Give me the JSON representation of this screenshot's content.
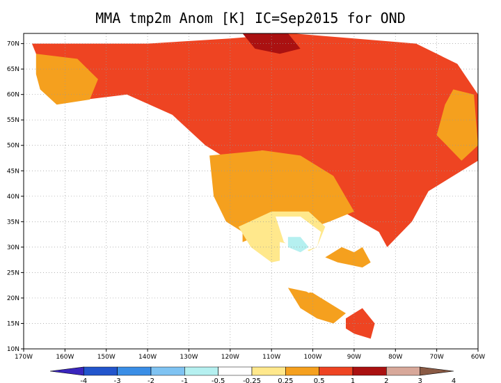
{
  "title": "MMA tmp2m Anom [K]  IC=Sep2015 for OND",
  "map": {
    "projection": "cylindrical",
    "lon_range": [
      -170,
      -60
    ],
    "lat_range": [
      10,
      72
    ],
    "lon_ticks": [
      {
        "value": -170,
        "label": "170W"
      },
      {
        "value": -160,
        "label": "160W"
      },
      {
        "value": -150,
        "label": "150W"
      },
      {
        "value": -140,
        "label": "140W"
      },
      {
        "value": -130,
        "label": "130W"
      },
      {
        "value": -120,
        "label": "120W"
      },
      {
        "value": -110,
        "label": "110W"
      },
      {
        "value": -100,
        "label": "100W"
      },
      {
        "value": -90,
        "label": "90W"
      },
      {
        "value": -80,
        "label": "80W"
      },
      {
        "value": -70,
        "label": "70W"
      },
      {
        "value": -60,
        "label": "60W"
      }
    ],
    "lat_ticks": [
      {
        "value": 10,
        "label": "10N"
      },
      {
        "value": 15,
        "label": "15N"
      },
      {
        "value": 20,
        "label": "20N"
      },
      {
        "value": 25,
        "label": "25N"
      },
      {
        "value": 30,
        "label": "30N"
      },
      {
        "value": 35,
        "label": "35N"
      },
      {
        "value": 40,
        "label": "40N"
      },
      {
        "value": 45,
        "label": "45N"
      },
      {
        "value": 50,
        "label": "50N"
      },
      {
        "value": 55,
        "label": "55N"
      },
      {
        "value": 60,
        "label": "60N"
      },
      {
        "value": 65,
        "label": "65N"
      },
      {
        "value": 70,
        "label": "70N"
      }
    ],
    "grid": "dotted",
    "regions": [
      {
        "name": "canada-north",
        "level": "1-2",
        "color": "#ee4422",
        "polygon": [
          [
            -168,
            70
          ],
          [
            -140,
            70
          ],
          [
            -120,
            71
          ],
          [
            -105,
            72
          ],
          [
            -90,
            71
          ],
          [
            -75,
            70
          ],
          [
            -65,
            66
          ],
          [
            -60,
            60
          ],
          [
            -60,
            47
          ],
          [
            -66,
            44
          ],
          [
            -72,
            41
          ],
          [
            -76,
            35
          ],
          [
            -82,
            30
          ],
          [
            -84,
            33
          ],
          [
            -95,
            38
          ],
          [
            -105,
            43
          ],
          [
            -112,
            49
          ],
          [
            -122,
            48
          ],
          [
            -126,
            50
          ],
          [
            -134,
            56
          ],
          [
            -145,
            60
          ],
          [
            -155,
            59
          ],
          [
            -160,
            63
          ],
          [
            -166,
            66
          ]
        ]
      },
      {
        "name": "alaska-west",
        "level": "0.5-1",
        "color": "#f5a01e",
        "polygon": [
          [
            -167,
            68
          ],
          [
            -157,
            67
          ],
          [
            -152,
            63
          ],
          [
            -154,
            59
          ],
          [
            -162,
            58
          ],
          [
            -166,
            61
          ],
          [
            -167,
            64
          ]
        ]
      },
      {
        "name": "labrador",
        "level": "0.5-1",
        "color": "#f5a01e",
        "polygon": [
          [
            -66,
            61
          ],
          [
            -61,
            60
          ],
          [
            -60,
            50
          ],
          [
            -64,
            47
          ],
          [
            -70,
            52
          ],
          [
            -68,
            58
          ]
        ]
      },
      {
        "name": "western-us",
        "level": "0.5-1",
        "color": "#f5a01e",
        "polygon": [
          [
            -125,
            48
          ],
          [
            -112,
            49
          ],
          [
            -103,
            48
          ],
          [
            -95,
            44
          ],
          [
            -90,
            37
          ],
          [
            -96,
            35
          ],
          [
            -103,
            33
          ],
          [
            -111,
            33
          ],
          [
            -117,
            31
          ],
          [
            -117,
            33
          ],
          [
            -121,
            35
          ],
          [
            -124,
            40
          ]
        ]
      },
      {
        "name": "gulf-coast",
        "level": "0.5-1",
        "color": "#f5a01e",
        "polygon": [
          [
            -97,
            28
          ],
          [
            -93,
            30
          ],
          [
            -90,
            29
          ],
          [
            -88,
            30
          ],
          [
            -86,
            27
          ],
          [
            -88,
            26
          ],
          [
            -94,
            27
          ]
        ]
      },
      {
        "name": "mexico-south",
        "level": "0.5-1",
        "color": "#f5a01e",
        "polygon": [
          [
            -106,
            22
          ],
          [
            -100,
            21
          ],
          [
            -96,
            19
          ],
          [
            -92,
            17
          ],
          [
            -95,
            15
          ],
          [
            -99,
            16
          ],
          [
            -103,
            18
          ]
        ]
      },
      {
        "name": "southwest",
        "level": "0.25-0.5",
        "color": "#ffe88c",
        "polygon": [
          [
            -118,
            34
          ],
          [
            -110,
            37
          ],
          [
            -101,
            37
          ],
          [
            -97,
            34
          ],
          [
            -99,
            30
          ],
          [
            -104,
            28
          ],
          [
            -110,
            27
          ],
          [
            -115,
            30
          ]
        ]
      },
      {
        "name": "texas",
        "level": "-0.25-0.25",
        "color": "#ffffff",
        "polygon": [
          [
            -109,
            36
          ],
          [
            -103,
            36
          ],
          [
            -98,
            33
          ],
          [
            -99,
            30
          ],
          [
            -103,
            29
          ],
          [
            -107,
            31
          ]
        ]
      },
      {
        "name": "mexico-north",
        "level": "-0.25-0.25",
        "color": "#ffffff",
        "polygon": [
          [
            -108,
            31
          ],
          [
            -102,
            30
          ],
          [
            -98,
            27
          ],
          [
            -97,
            22
          ],
          [
            -101,
            21
          ],
          [
            -105,
            23
          ],
          [
            -108,
            27
          ]
        ]
      },
      {
        "name": "cool-anom",
        "level": "-0.5--0.25",
        "color": "#b5f0f0",
        "polygon": [
          [
            -106,
            32
          ],
          [
            -103,
            32
          ],
          [
            -101,
            30
          ],
          [
            -103,
            29
          ],
          [
            -106,
            30
          ]
        ]
      },
      {
        "name": "canada-hot",
        "level": "2-3",
        "color": "#aa1111",
        "polygon": [
          [
            -117,
            72
          ],
          [
            -106,
            72
          ],
          [
            -103,
            69
          ],
          [
            -108,
            68
          ],
          [
            -114,
            69
          ]
        ]
      },
      {
        "name": "central-america",
        "level": "1-2",
        "color": "#ee4422",
        "polygon": [
          [
            -92,
            16
          ],
          [
            -88,
            18
          ],
          [
            -85,
            15
          ],
          [
            -86,
            12
          ],
          [
            -90,
            13
          ],
          [
            -92,
            14
          ]
        ]
      }
    ]
  },
  "colorbar": {
    "colors": [
      "#3a25bd",
      "#2255cc",
      "#3a8ee6",
      "#7fc3f2",
      "#b5f0f0",
      "#ffffff",
      "#ffe88c",
      "#f5a01e",
      "#ee4422",
      "#aa1111",
      "#d8a89a",
      "#8a5a44"
    ],
    "labels": [
      "-4",
      "-3",
      "-2",
      "-1",
      "-0.5",
      "-0.25",
      "0.25",
      "0.5",
      "1",
      "2",
      "3",
      "4"
    ]
  }
}
